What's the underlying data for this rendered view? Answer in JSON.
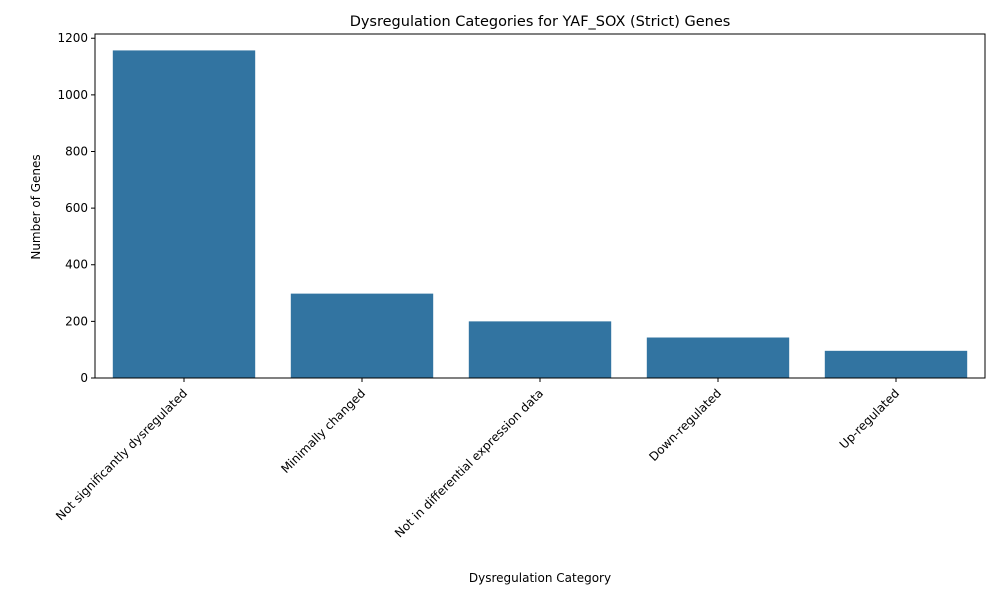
{
  "chart_data": {
    "type": "bar",
    "title": "Dysregulation Categories for YAF_SOX (Strict) Genes",
    "xlabel": "Dysregulation Category",
    "ylabel": "Number of Genes",
    "categories": [
      "Not significantly dysregulated",
      "Minimally changed",
      "Not in differential expression data",
      "Down-regulated",
      "Up-regulated"
    ],
    "values": [
      1157,
      298,
      200,
      143,
      96
    ],
    "ylim": [
      0,
      1215
    ],
    "yticks": [
      0,
      200,
      400,
      600,
      800,
      1000,
      1200
    ],
    "grid": false,
    "legend": "none",
    "colors": {
      "bar": "#3274a1",
      "axis": "#000000"
    }
  }
}
